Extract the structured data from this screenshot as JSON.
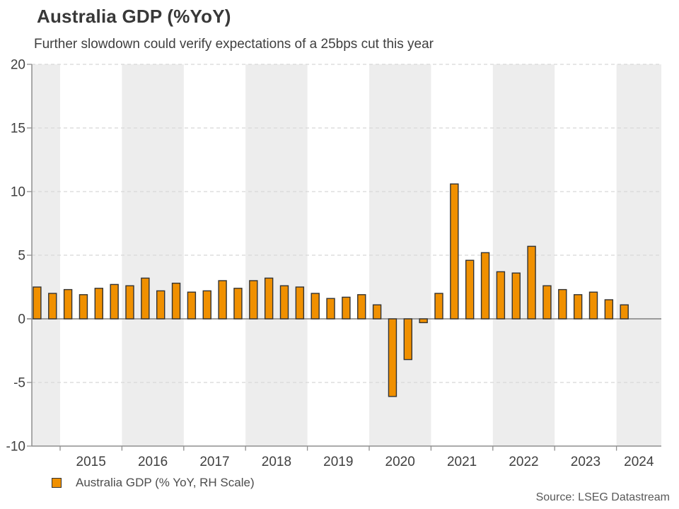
{
  "header": {
    "title": "Australia GDP (%YoY)",
    "subtitle": "Further slowdown could verify expectations of a 25bps cut this year"
  },
  "legend": {
    "label": "Australia GDP (% YoY, RH Scale)"
  },
  "source": "Source: LSEG Datastream",
  "colors": {
    "bar_fill": "#F09000",
    "bar_border": "#333333",
    "year_band": "#EDEDED",
    "gridline": "#D8D8D8",
    "axis": "#8F8F8F",
    "zero_line": "#7F7F7F",
    "axis_text": "#404040"
  },
  "chart_data": {
    "type": "bar",
    "title": "Australia GDP (%YoY)",
    "subtitle": "Further slowdown could verify expectations of a 25bps cut this year",
    "series_name": "Australia GDP (% YoY, RH Scale)",
    "xlabel": "",
    "ylabel": "",
    "ylim": [
      -10,
      20
    ],
    "yticks": [
      20,
      15,
      10,
      5,
      0,
      -5,
      -10
    ],
    "x_year_labels": [
      "2015",
      "2016",
      "2017",
      "2018",
      "2019",
      "2020",
      "2021",
      "2022",
      "2023",
      "2024"
    ],
    "categories": [
      "2014 Q3",
      "2014 Q4",
      "2015 Q1",
      "2015 Q2",
      "2015 Q3",
      "2015 Q4",
      "2016 Q1",
      "2016 Q2",
      "2016 Q3",
      "2016 Q4",
      "2017 Q1",
      "2017 Q2",
      "2017 Q3",
      "2017 Q4",
      "2018 Q1",
      "2018 Q2",
      "2018 Q3",
      "2018 Q4",
      "2019 Q1",
      "2019 Q2",
      "2019 Q3",
      "2019 Q4",
      "2020 Q1",
      "2020 Q2",
      "2020 Q3",
      "2020 Q4",
      "2021 Q1",
      "2021 Q2",
      "2021 Q3",
      "2021 Q4",
      "2022 Q1",
      "2022 Q2",
      "2022 Q3",
      "2022 Q4",
      "2023 Q1",
      "2023 Q2",
      "2023 Q3",
      "2023 Q4",
      "2024 Q1"
    ],
    "values": [
      2.5,
      2.0,
      2.3,
      1.9,
      2.4,
      2.7,
      2.6,
      3.2,
      2.2,
      2.8,
      2.1,
      2.2,
      3.0,
      2.4,
      3.0,
      3.2,
      2.6,
      2.5,
      2.0,
      1.6,
      1.7,
      1.9,
      1.1,
      -6.1,
      -3.2,
      -0.3,
      2.0,
      10.6,
      4.6,
      5.2,
      3.7,
      3.6,
      5.7,
      2.6,
      2.3,
      1.9,
      2.1,
      1.5,
      1.1
    ],
    "grid": "horizontal dashed lines at labeled ticks, solid zero line",
    "banding": "alternate-year vertical gray shading (2014, 2016, 2018, 2020, 2022, 2024)",
    "legend_position": "bottom-left"
  }
}
